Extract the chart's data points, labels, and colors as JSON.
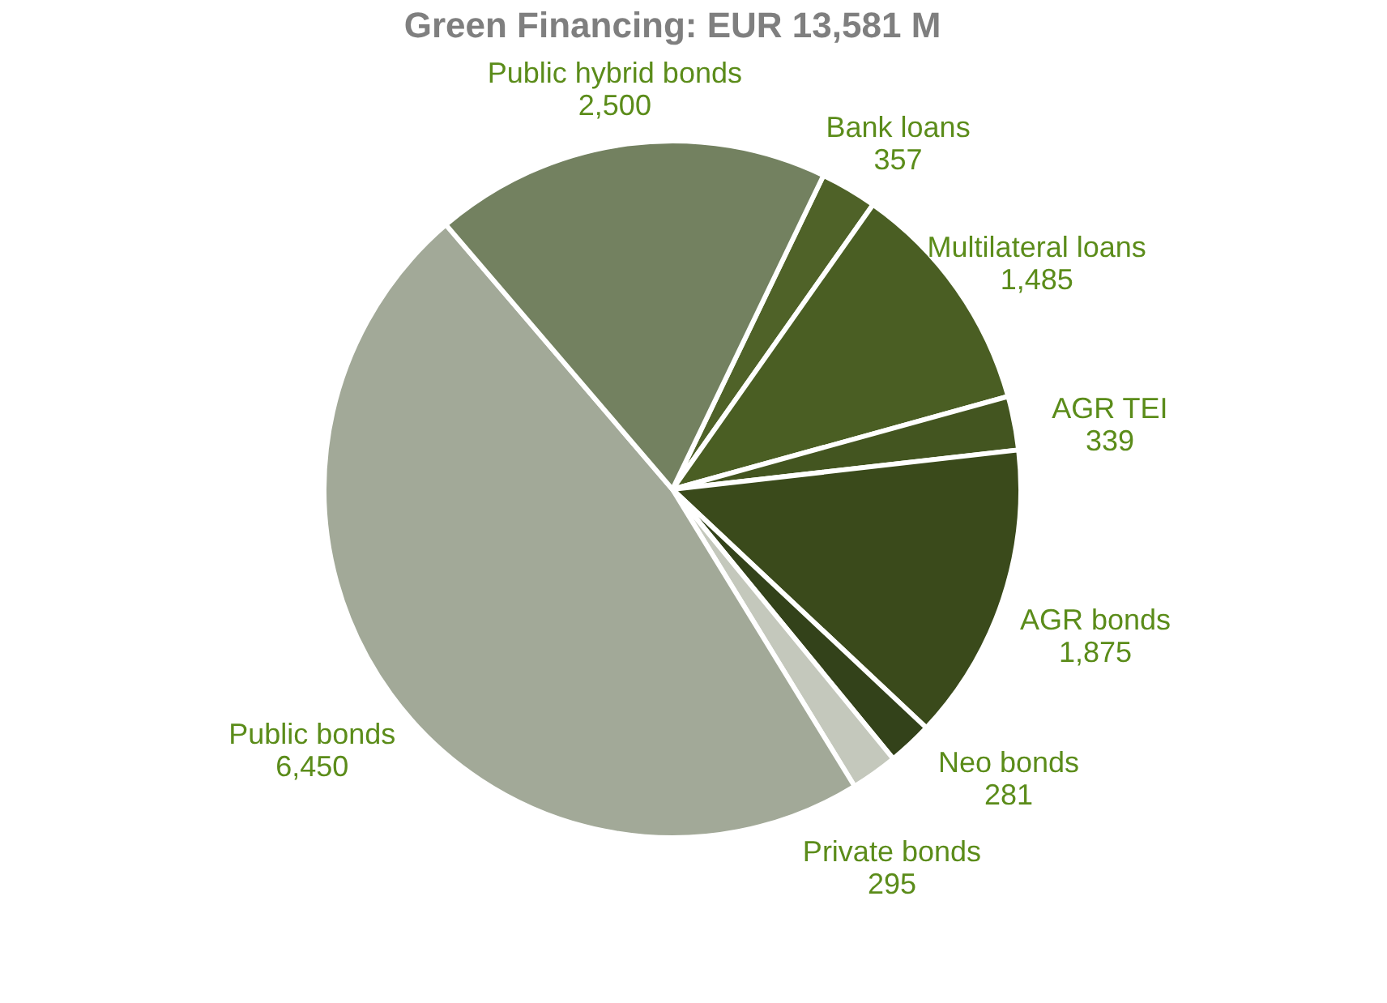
{
  "chart_data": {
    "type": "pie",
    "title": "Green Financing: EUR 13,581 M",
    "categories": [
      "Bank loans",
      "Multilateral loans",
      "AGR TEI",
      "AGR bonds",
      "Neo bonds",
      "Private bonds",
      "Public bonds",
      "Public hybrid bonds"
    ],
    "values": [
      357,
      1485,
      339,
      1875,
      281,
      295,
      6450,
      2500
    ],
    "value_labels": [
      "357",
      "1,485",
      "339",
      "1,875",
      "281",
      "295",
      "6,450",
      "2,500"
    ],
    "colors": [
      "#4f6228",
      "#4a5e23",
      "#435520",
      "#3a4a1b",
      "#33421a",
      "#c4c8bc",
      "#a2a998",
      "#738160"
    ],
    "legend": false
  }
}
